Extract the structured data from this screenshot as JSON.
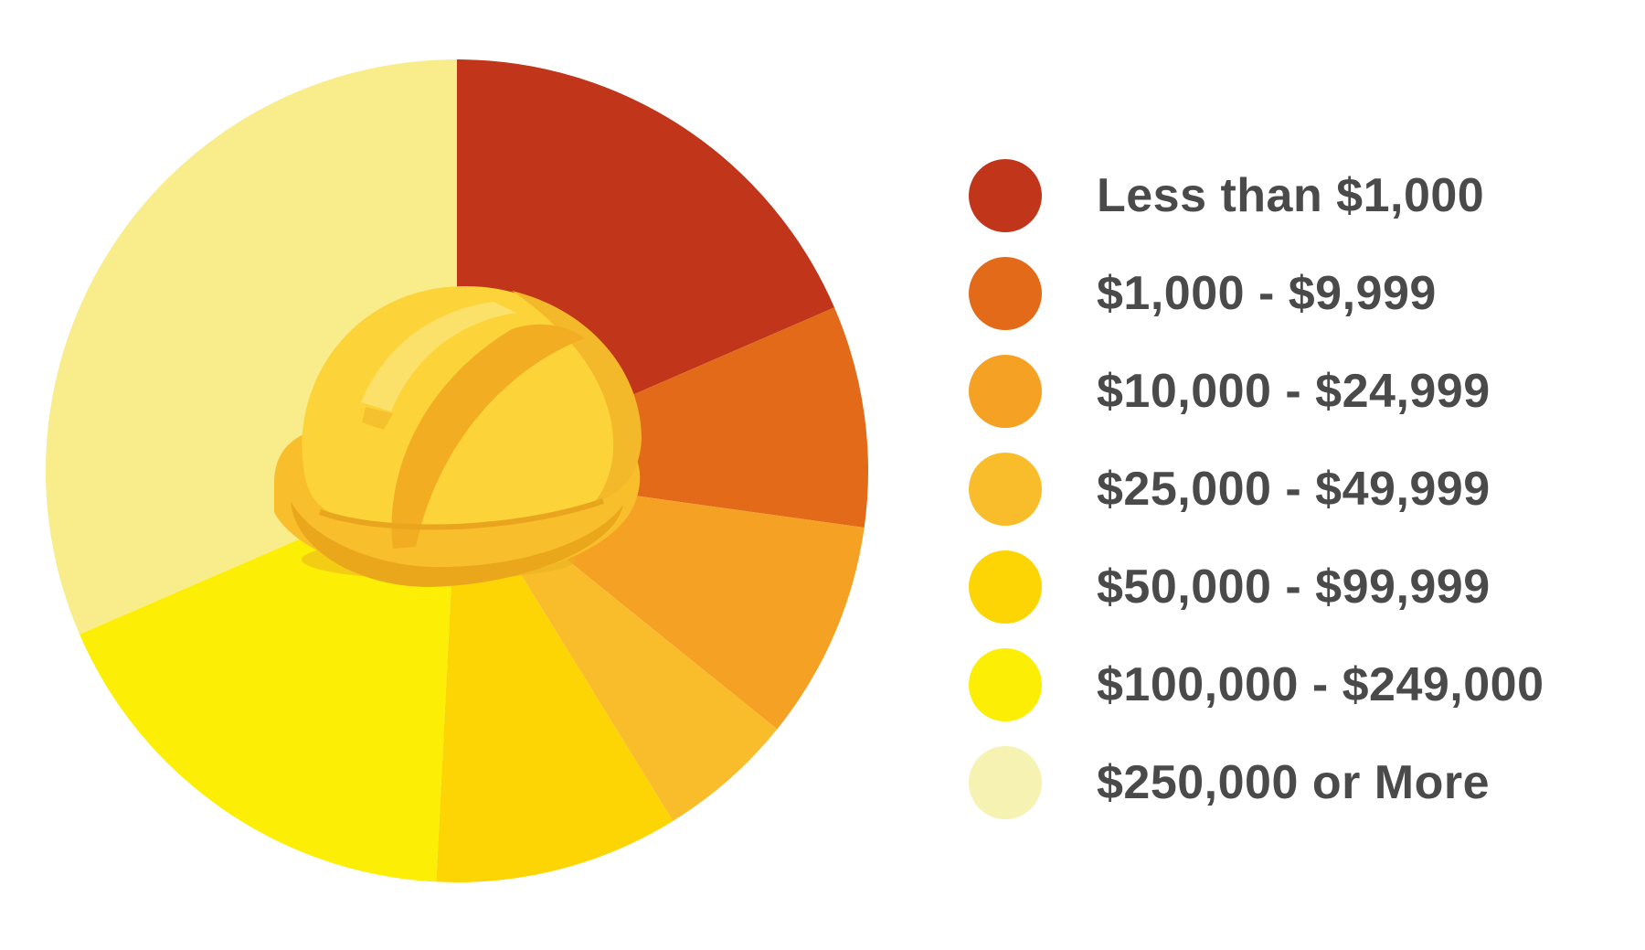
{
  "chart_data": {
    "type": "pie",
    "categories": [
      "Less than $1,000",
      "$1,000 - $9,999",
      "$10,000 - $24,999",
      "$25,000 - $49,999",
      "$50,000 - $99,999",
      "$100,000 - $249,000",
      "$250,000 or More"
    ],
    "values": [
      18.5,
      8.7,
      8.6,
      5.4,
      9.6,
      17.7,
      31.5
    ],
    "colors": [
      "#c1351a",
      "#e26a18",
      "#f5a123",
      "#f9bd2c",
      "#fdd505",
      "#fdee05",
      "#f8ed8a"
    ],
    "legend_colors": [
      "#c1351a",
      "#e26a18",
      "#f5a123",
      "#f9bd2c",
      "#fdd505",
      "#fdee05",
      "#f5f2b2"
    ],
    "start_angle_deg": 0,
    "direction": "clockwise",
    "legend_position": "right",
    "center_icon": "hard-hat-icon"
  }
}
